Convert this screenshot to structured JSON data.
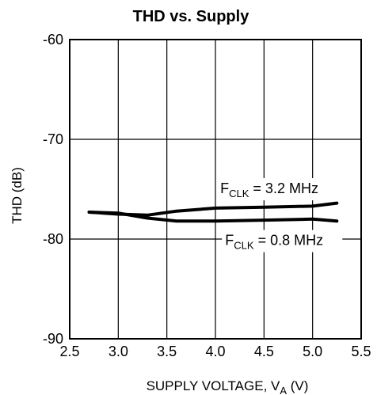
{
  "chart_data": {
    "type": "line",
    "title": "THD vs. Supply",
    "xlabel": "SUPPLY VOLTAGE, V_A (V)",
    "xlabel_parts": {
      "main": "SUPPLY VOLTAGE, V",
      "sub": "A",
      "tail": " (V)"
    },
    "ylabel": "THD (dB)",
    "xlim": [
      2.5,
      5.5
    ],
    "ylim": [
      -90,
      -60
    ],
    "xticks": [
      2.5,
      3.0,
      3.5,
      4.0,
      4.5,
      5.0,
      5.5
    ],
    "xtick_labels": [
      "2.5",
      "3.0",
      "3.5",
      "4.0",
      "4.5",
      "5.0",
      "5.5"
    ],
    "yticks": [
      -90,
      -80,
      -70,
      -60
    ],
    "ytick_labels": [
      "-90",
      "-80",
      "-70",
      "-60"
    ],
    "grid": true,
    "series": [
      {
        "name": "F_CLK = 3.2 MHz",
        "label_parts": {
          "main": "F",
          "sub": "CLK",
          "tail": " = 3.2 MHz"
        },
        "x": [
          2.7,
          3.0,
          3.3,
          3.6,
          4.0,
          4.5,
          5.0,
          5.25
        ],
        "y": [
          -77.3,
          -77.5,
          -77.6,
          -77.2,
          -76.9,
          -76.8,
          -76.7,
          -76.4
        ]
      },
      {
        "name": "F_CLK = 0.8 MHz",
        "label_parts": {
          "main": "F",
          "sub": "CLK",
          "tail": " = 0.8 MHz"
        },
        "x": [
          2.7,
          3.0,
          3.3,
          3.6,
          4.0,
          4.5,
          5.0,
          5.25
        ],
        "y": [
          -77.3,
          -77.4,
          -77.9,
          -78.2,
          -78.2,
          -78.1,
          -78.0,
          -78.2
        ]
      }
    ],
    "line_color": "#000000"
  }
}
